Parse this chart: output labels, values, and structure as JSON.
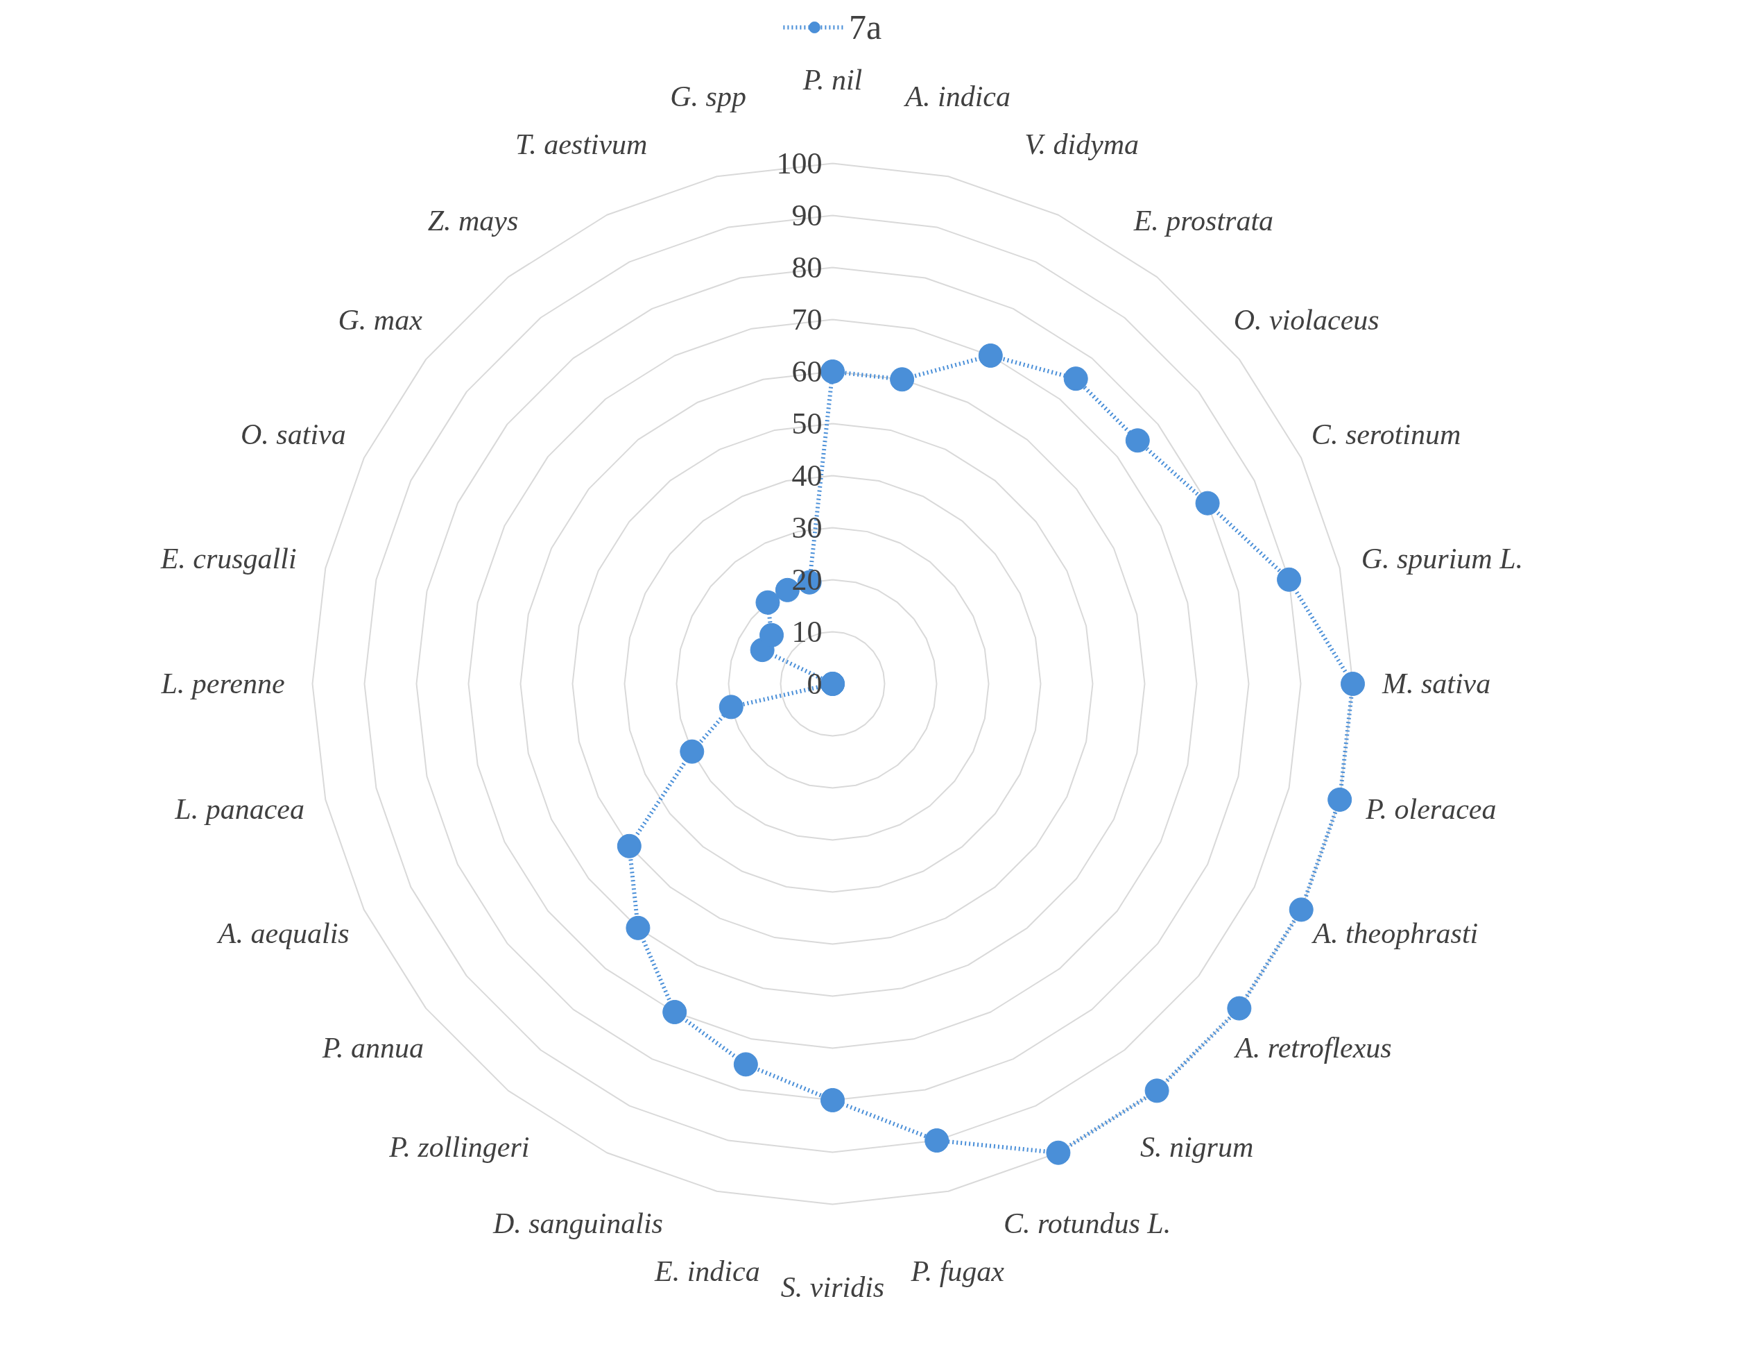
{
  "chart_data": {
    "type": "radar",
    "categories": [
      "P. nil",
      "A. indica",
      "V. didyma",
      "E. prostrata",
      "O. violaceus",
      "C. serotinum",
      "G. spurium L.",
      "M. sativa",
      "P. oleracea",
      "A. theophrasti",
      "A. retroflexus",
      "S. nigrum",
      "C. rotundus L.",
      "P. fugax",
      "S. viridis",
      "E. indica",
      "D. sanguinalis",
      "P. zollingeri",
      "P. annua",
      "A. aequalis",
      "L. panacea",
      "L. perenne",
      "E. crusgalli",
      "O. sativa",
      "G. max",
      "Z. mays",
      "T. aestivum",
      "G. spp"
    ],
    "series": [
      {
        "name": "7a",
        "color": "#4a8fd8",
        "values": [
          60,
          60,
          70,
          75,
          75,
          80,
          90,
          100,
          100,
          100,
          100,
          100,
          100,
          90,
          80,
          75,
          70,
          60,
          50,
          30,
          20,
          0,
          0,
          15,
          15,
          20,
          20,
          20
        ]
      }
    ],
    "ylim": [
      0,
      100
    ],
    "yticks": [
      0,
      10,
      20,
      30,
      40,
      50,
      60,
      70,
      80,
      90,
      100
    ],
    "grid": true,
    "legend": "top",
    "marker": "circle",
    "line_style": "dotted"
  }
}
